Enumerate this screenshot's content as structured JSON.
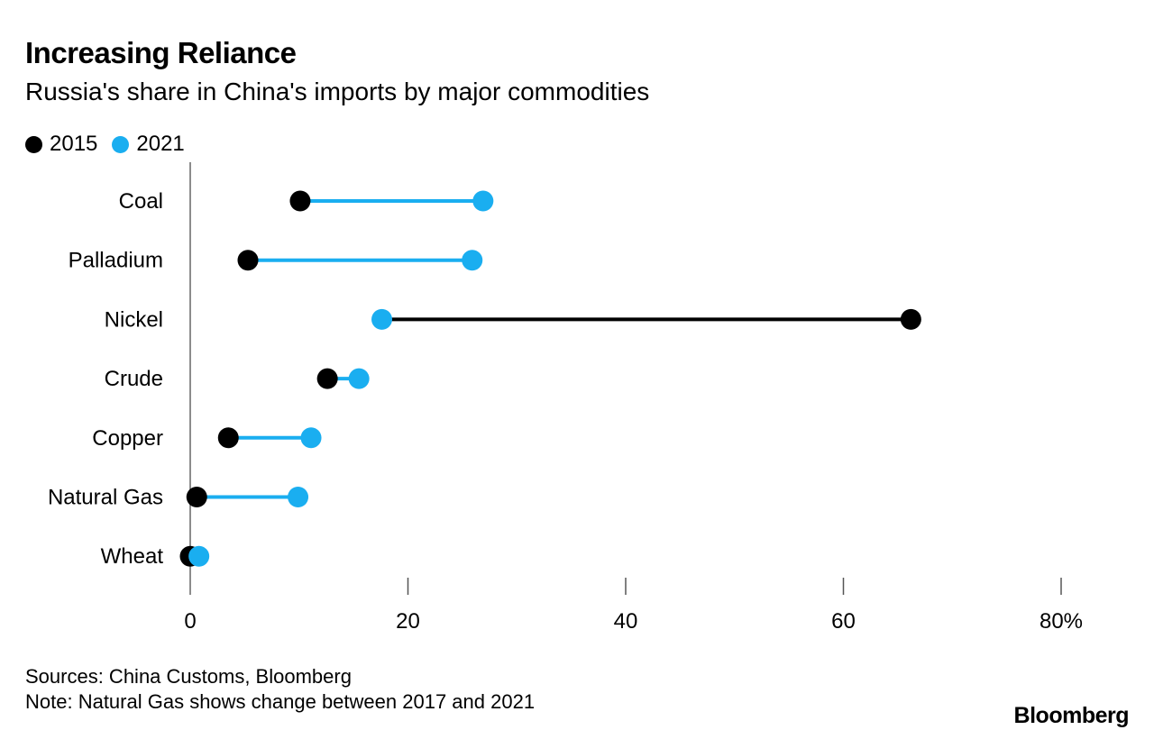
{
  "header": {
    "title": "Increasing Reliance",
    "subtitle": "Russia's share in China's imports by major commodities"
  },
  "legend": [
    {
      "label": "2015",
      "color": "#000000"
    },
    {
      "label": "2021",
      "color": "#1aaef0"
    }
  ],
  "footer": {
    "sources": "Sources: China Customs, Bloomberg",
    "note": "Note: Natural Gas shows change between 2017 and 2021",
    "logo": "Bloomberg"
  },
  "chart_data": {
    "type": "scatter",
    "subtype": "dumbbell",
    "title": "Increasing Reliance",
    "subtitle": "Russia's share in China's imports by major commodities",
    "categories": [
      "Coal",
      "Palladium",
      "Nickel",
      "Crude",
      "Copper",
      "Natural Gas",
      "Wheat"
    ],
    "series": [
      {
        "name": "2015",
        "color": "#000000",
        "values": [
          10.1,
          5.3,
          66.2,
          12.6,
          3.5,
          0.6,
          0.0
        ]
      },
      {
        "name": "2021",
        "color": "#1aaef0",
        "values": [
          26.9,
          25.9,
          17.6,
          15.5,
          11.1,
          9.9,
          0.8
        ]
      }
    ],
    "xlim": [
      0,
      80
    ],
    "xticks": [
      0,
      20,
      40,
      60,
      80
    ],
    "xtick_labels": [
      "0",
      "20",
      "40",
      "60",
      "80%"
    ],
    "xlabel": "",
    "ylabel": "",
    "grid": false,
    "legend_position": "top-left"
  }
}
